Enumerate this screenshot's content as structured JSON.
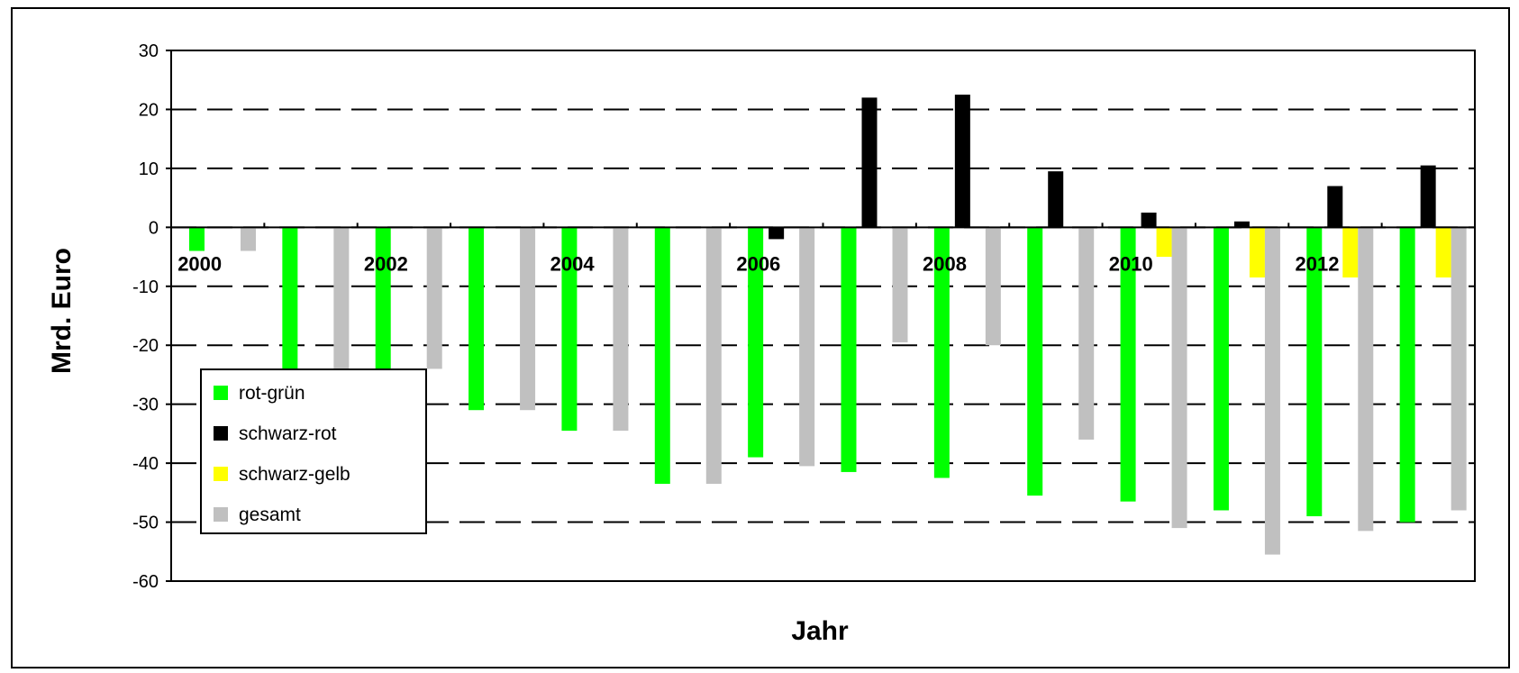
{
  "chart_data": {
    "type": "bar",
    "title": "",
    "xlabel": "Jahr",
    "ylabel": "Mrd. Euro",
    "ylim": [
      -60,
      30
    ],
    "yticks": [
      30,
      20,
      10,
      0,
      -10,
      -20,
      -30,
      -40,
      -50,
      -60
    ],
    "categories": [
      "2000",
      "2001",
      "2002",
      "2003",
      "2004",
      "2005",
      "2006",
      "2007",
      "2008",
      "2009",
      "2010",
      "2011",
      "2012",
      "2013"
    ],
    "category_labels_shown": [
      "2000",
      "",
      "2002",
      "",
      "2004",
      "",
      "2006",
      "",
      "2008",
      "",
      "2010",
      "",
      "2012",
      ""
    ],
    "grid": "horizontal dashed",
    "legend_position": "lower-left",
    "series": [
      {
        "name": "rot-grün",
        "color": "#00ff00",
        "values": [
          -4,
          -25,
          -25,
          -31,
          -34.5,
          -43.5,
          -39,
          -41.5,
          -42.5,
          -45.5,
          -46.5,
          -48,
          -49,
          -50
        ]
      },
      {
        "name": "schwarz-rot",
        "color": "#000000",
        "values": [
          null,
          null,
          null,
          null,
          null,
          null,
          -2,
          22,
          22.5,
          9.5,
          2.5,
          1,
          7,
          10.5
        ]
      },
      {
        "name": "schwarz-gelb",
        "color": "#ffff00",
        "values": [
          null,
          null,
          null,
          null,
          null,
          null,
          null,
          null,
          null,
          null,
          -5,
          -8.5,
          -8.5,
          -8.5
        ]
      },
      {
        "name": "gesamt",
        "color": "#c0c0c0",
        "values": [
          -4,
          -24,
          -24,
          -31,
          -34.5,
          -43.5,
          -40.5,
          -19.5,
          -20,
          -36,
          -51,
          -55.5,
          -51.5,
          -48
        ]
      }
    ]
  }
}
